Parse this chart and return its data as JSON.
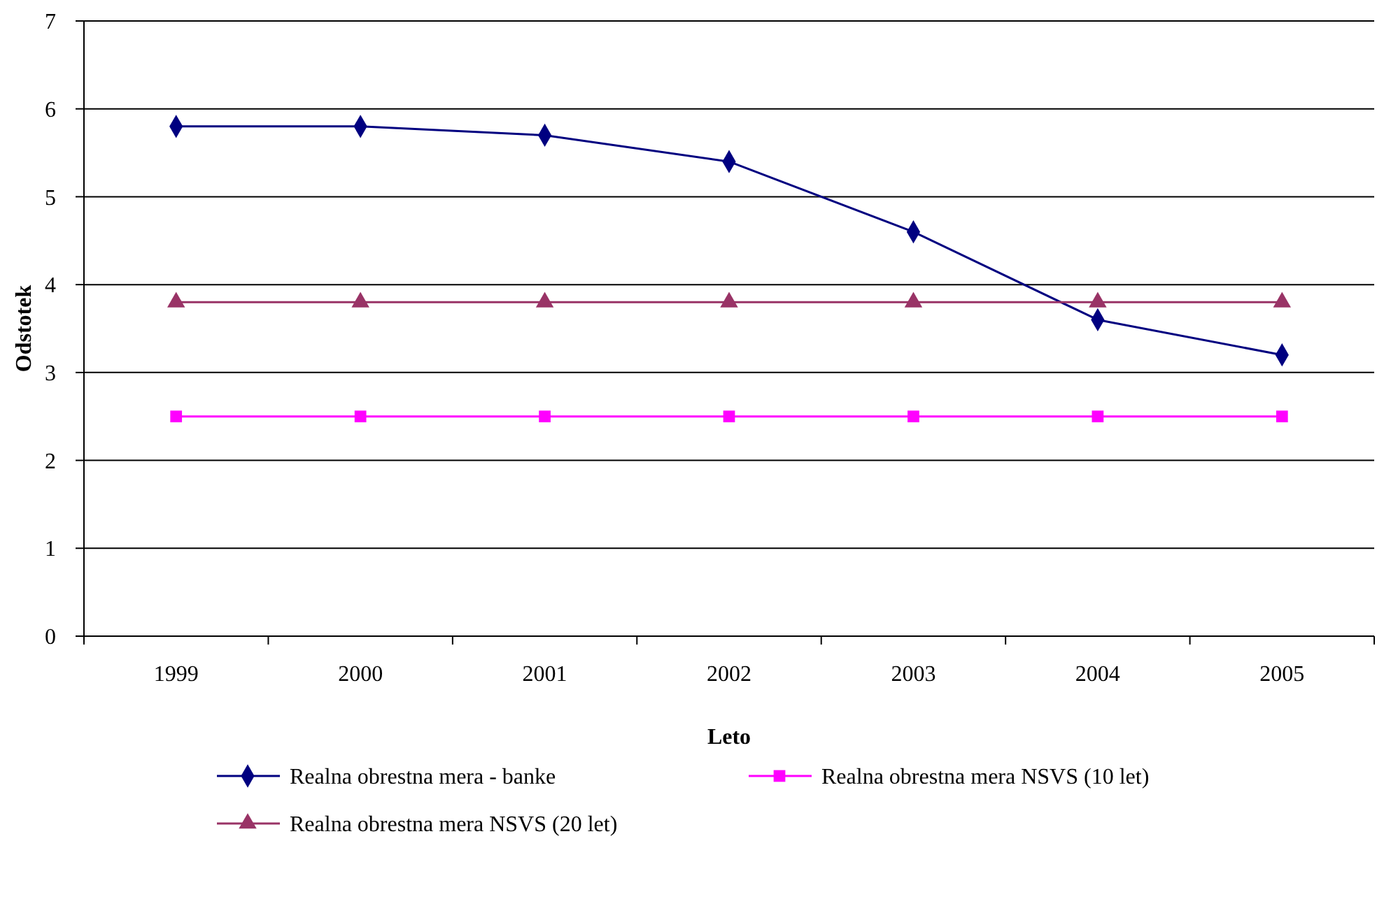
{
  "chart_data": {
    "type": "line",
    "xlabel": "Leto",
    "ylabel": "Odstotek",
    "categories": [
      "1999",
      "2000",
      "2001",
      "2002",
      "2003",
      "2004",
      "2005"
    ],
    "series": [
      {
        "name": "Realna obrestna mera - banke",
        "color": "#000080",
        "marker": "diamond",
        "values": [
          5.8,
          5.8,
          5.7,
          5.4,
          4.6,
          3.6,
          3.2
        ]
      },
      {
        "name": "Realna obrestna mera NSVS (10 let)",
        "color": "#ff00ff",
        "marker": "square",
        "values": [
          2.5,
          2.5,
          2.5,
          2.5,
          2.5,
          2.5,
          2.5
        ]
      },
      {
        "name": "Realna obrestna mera NSVS (20 let)",
        "color": "#993366",
        "marker": "triangle",
        "values": [
          3.8,
          3.8,
          3.8,
          3.8,
          3.8,
          3.8,
          3.8
        ]
      }
    ],
    "ylim": [
      0,
      7
    ],
    "yticks": [
      0,
      1,
      2,
      3,
      4,
      5,
      6,
      7
    ],
    "grid": "y",
    "legend": "bottom",
    "line_style": "solid"
  }
}
